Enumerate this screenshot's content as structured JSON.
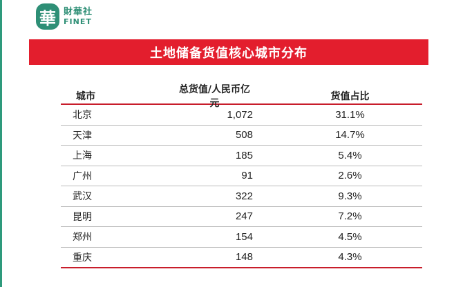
{
  "logo": {
    "mark": "華",
    "cn": "財華社",
    "en": "FINET"
  },
  "title": "土地储备货值核心城市分布",
  "table": {
    "headers": {
      "city": "城市",
      "value": "总货值/人民币亿元",
      "share": "货值占比"
    },
    "rows": [
      {
        "city": "北京",
        "value": "1,072",
        "share": "31.1%"
      },
      {
        "city": "天津",
        "value": "508",
        "share": "14.7%"
      },
      {
        "city": "上海",
        "value": "185",
        "share": "5.4%"
      },
      {
        "city": "广州",
        "value": "91",
        "share": "2.6%"
      },
      {
        "city": "武汉",
        "value": "322",
        "share": "9.3%"
      },
      {
        "city": "昆明",
        "value": "247",
        "share": "7.2%"
      },
      {
        "city": "郑州",
        "value": "154",
        "share": "4.5%"
      },
      {
        "city": "重庆",
        "value": "148",
        "share": "4.3%"
      }
    ]
  },
  "colors": {
    "title_bg": "#e31e2d",
    "rule": "#c81d2b",
    "logo": "#2e8f76"
  }
}
